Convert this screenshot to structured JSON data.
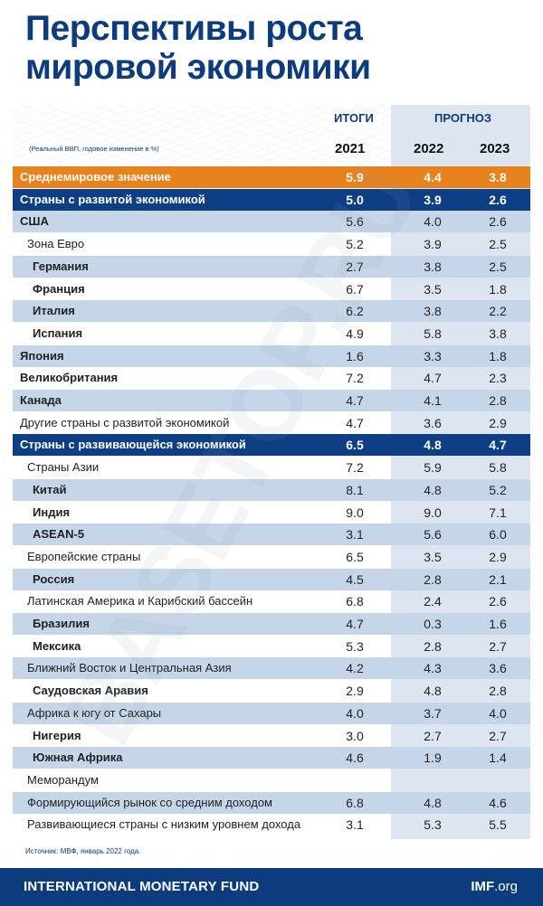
{
  "title_line1": "Перспективы роста",
  "title_line2": "мировой экономики",
  "header": {
    "itogi": "ИТОГИ",
    "prognoz": "ПРОГНОЗ",
    "subnote": "(Реальный ВВП, годовое изменение в %)",
    "years": [
      "2021",
      "2022",
      "2023"
    ]
  },
  "rows": [
    {
      "label": "Среднемировое значение",
      "v": [
        "5.9",
        "4.4",
        "3.8"
      ]
    },
    {
      "label": "Страны с развитой экономикой",
      "v": [
        "5.0",
        "3.9",
        "2.6"
      ]
    },
    {
      "label": "США",
      "v": [
        "5.6",
        "4.0",
        "2.6"
      ]
    },
    {
      "label": "Зона Евро",
      "v": [
        "5.2",
        "3.9",
        "2.5"
      ]
    },
    {
      "label": "Германия",
      "v": [
        "2.7",
        "3.8",
        "2.5"
      ]
    },
    {
      "label": "Франция",
      "v": [
        "6.7",
        "3.5",
        "1.8"
      ]
    },
    {
      "label": "Италия",
      "v": [
        "6.2",
        "3.8",
        "2.2"
      ]
    },
    {
      "label": "Испания",
      "v": [
        "4.9",
        "5.8",
        "3.8"
      ]
    },
    {
      "label": "Япония",
      "v": [
        "1.6",
        "3.3",
        "1.8"
      ]
    },
    {
      "label": "Великобритания",
      "v": [
        "7.2",
        "4.7",
        "2.3"
      ]
    },
    {
      "label": "Канада",
      "v": [
        "4.7",
        "4.1",
        "2.8"
      ]
    },
    {
      "label": "Другие страны с развитой экономикой",
      "v": [
        "4.7",
        "3.6",
        "2.9"
      ]
    },
    {
      "label": "Страны с развивающейся экономикой",
      "v": [
        "6.5",
        "4.8",
        "4.7"
      ]
    },
    {
      "label": "Страны Азии",
      "v": [
        "7.2",
        "5.9",
        "5.8"
      ]
    },
    {
      "label": "Китай",
      "v": [
        "8.1",
        "4.8",
        "5.2"
      ]
    },
    {
      "label": "Индия",
      "v": [
        "9.0",
        "9.0",
        "7.1"
      ]
    },
    {
      "label": "ASEAN-5",
      "v": [
        "3.1",
        "5.6",
        "6.0"
      ]
    },
    {
      "label": "Европейские страны",
      "v": [
        "6.5",
        "3.5",
        "2.9"
      ]
    },
    {
      "label": "Россия",
      "v": [
        "4.5",
        "2.8",
        "2.1"
      ]
    },
    {
      "label": "Латинская Америка и Карибский бассейн",
      "v": [
        "6.8",
        "2.4",
        "2.6"
      ]
    },
    {
      "label": "Бразилия",
      "v": [
        "4.7",
        "0.3",
        "1.6"
      ]
    },
    {
      "label": "Мексика",
      "v": [
        "5.3",
        "2.8",
        "2.7"
      ]
    },
    {
      "label": "Ближний Восток и Центральная Азия",
      "v": [
        "4.2",
        "4.3",
        "3.6"
      ]
    },
    {
      "label": "Саудовская Аравия",
      "v": [
        "2.9",
        "4.8",
        "2.8"
      ]
    },
    {
      "label": "Африка к югу от Сахары",
      "v": [
        "4.0",
        "3.7",
        "4.0"
      ]
    },
    {
      "label": "Нигерия",
      "v": [
        "3.0",
        "2.7",
        "2.7"
      ]
    },
    {
      "label": "Южная Африка",
      "v": [
        "4.6",
        "1.9",
        "1.4"
      ]
    },
    {
      "label": "Меморандум",
      "v": [
        "",
        "",
        ""
      ]
    },
    {
      "label": "Формирующийся рынок со средним доходом",
      "v": [
        "6.8",
        "4.8",
        "4.6"
      ]
    },
    {
      "label": "Развивающиеся страны с низким уровнем дохода",
      "v": [
        "3.1",
        "5.3",
        "5.5"
      ]
    }
  ],
  "source": "Источник: МВФ, январь 2022 года.",
  "footer": {
    "imf_name": "INTERNATIONAL MONETARY FUND",
    "imf_org_bold": "IMF",
    "imf_org_rest": ".org"
  },
  "colors": {
    "title": "#0c3c7d",
    "orange_row": "#e8821c",
    "navy_row": "#0e3f85",
    "alt_row": "#c6d6e9",
    "forecast_shade": "#dde6f0"
  }
}
